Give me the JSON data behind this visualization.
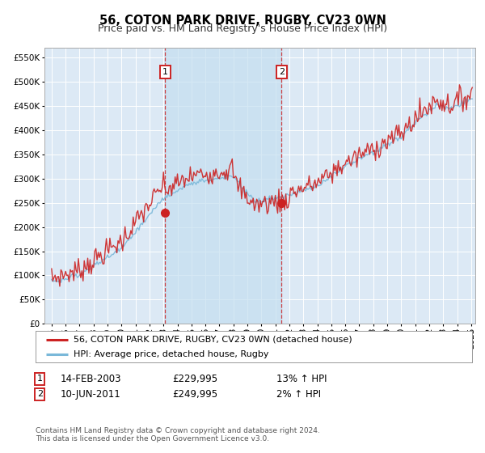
{
  "title": "56, COTON PARK DRIVE, RUGBY, CV23 0WN",
  "subtitle": "Price paid vs. HM Land Registry's House Price Index (HPI)",
  "ylim": [
    0,
    570000
  ],
  "yticks": [
    0,
    50000,
    100000,
    150000,
    200000,
    250000,
    300000,
    350000,
    400000,
    450000,
    500000,
    550000
  ],
  "xlim_start": 1994.5,
  "xlim_end": 2025.3,
  "background_color": "#ffffff",
  "plot_bg_color": "#dce9f5",
  "grid_color": "#ffffff",
  "line_color_hpi": "#7ab8d9",
  "line_color_price": "#cc2222",
  "fill_color": "#c5dff0",
  "purchase1_x": 2003.12,
  "purchase1_y": 229995,
  "purchase2_x": 2011.44,
  "purchase2_y": 249995,
  "legend_label1": "56, COTON PARK DRIVE, RUGBY, CV23 0WN (detached house)",
  "legend_label2": "HPI: Average price, detached house, Rugby",
  "annotation1_label": "1",
  "annotation2_label": "2",
  "table_row1": [
    "1",
    "14-FEB-2003",
    "£229,995",
    "13% ↑ HPI"
  ],
  "table_row2": [
    "2",
    "10-JUN-2011",
    "£249,995",
    "2% ↑ HPI"
  ],
  "footer": "Contains HM Land Registry data © Crown copyright and database right 2024.\nThis data is licensed under the Open Government Licence v3.0.",
  "title_fontsize": 10.5,
  "subtitle_fontsize": 9,
  "tick_fontsize": 7.5,
  "legend_fontsize": 8,
  "annot_fontsize": 8,
  "table_fontsize": 8.5,
  "footer_fontsize": 6.5
}
